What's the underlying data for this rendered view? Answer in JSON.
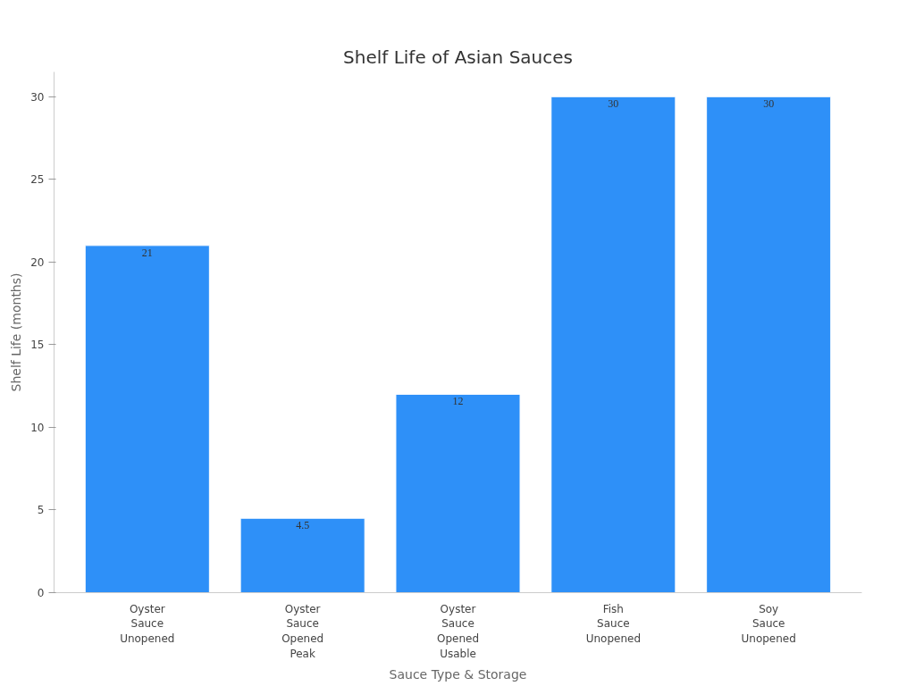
{
  "chart_data": {
    "type": "bar",
    "title": "Shelf Life of Asian Sauces",
    "xlabel": "Sauce Type & Storage",
    "ylabel": "Shelf Life (months)",
    "categories": [
      "Oyster Sauce Unopened",
      "Oyster Sauce Opened Peak",
      "Oyster Sauce Opened Usable",
      "Fish Sauce Unopened",
      "Soy Sauce Unopened"
    ],
    "values": [
      21,
      4.5,
      12,
      30,
      30
    ],
    "color": "#2e90f8",
    "ylim": [
      0,
      31.5
    ],
    "yticks": [
      0,
      5,
      10,
      15,
      20,
      25,
      30
    ],
    "grid": false,
    "data_labels": true
  }
}
